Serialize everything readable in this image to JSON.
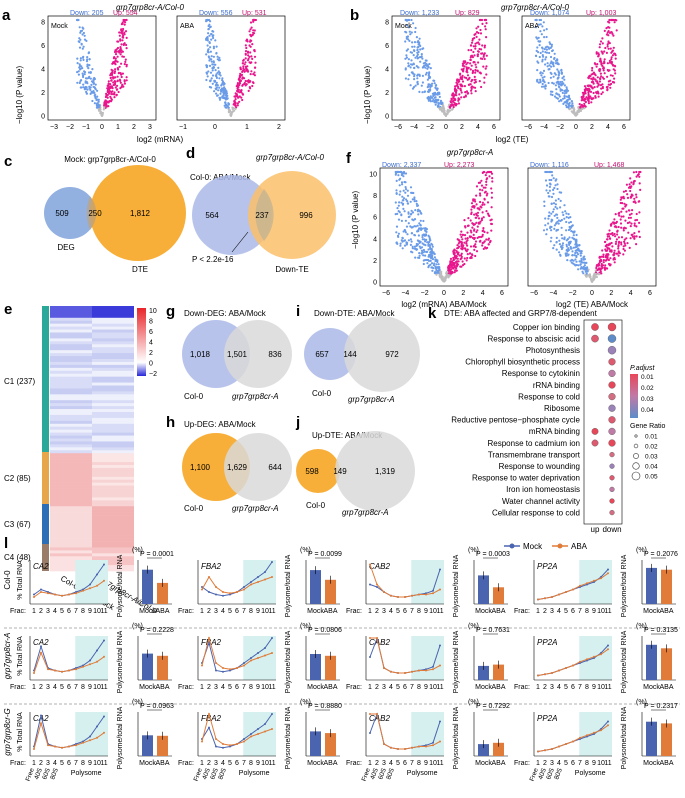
{
  "colors": {
    "down": "#6a9be8",
    "up": "#e8168c",
    "ns": "#bdbdbd",
    "blue": "#7fa3dc",
    "orange": "#f6a623",
    "gray": "#d4d4d4",
    "mock": "#4a64b0",
    "aba": "#e07b39",
    "poly": "#d5f0ef",
    "hm_hi": "#e8252a",
    "hm_lo": "#2626d8"
  },
  "labels": {
    "a": "a",
    "b": "b",
    "c": "c",
    "d": "d",
    "e": "e",
    "f": "f",
    "g": "g",
    "h": "h",
    "i": "i",
    "j": "j",
    "k": "k",
    "l": "l"
  },
  "panel_a": {
    "title": "grp7grp8cr-A/Col-0",
    "ylabel": "−log10 (P value)",
    "xlabel": "log2 (mRNA)",
    "mock": {
      "cond": "Mock",
      "down": "Down: 205",
      "up": "Up: 554"
    },
    "aba": {
      "cond": "ABA",
      "down": "Down: 556",
      "up": "Up: 531"
    },
    "yticks": [
      "0",
      "2",
      "4",
      "6",
      "8"
    ],
    "xticks": [
      "−3",
      "−2",
      "−1",
      "0",
      "1",
      "2",
      "3"
    ],
    "xticks2": [
      "−1",
      "0",
      "1",
      "2"
    ]
  },
  "panel_b": {
    "title": "grp7grp8cr-A/Col-0",
    "ylabel": "−log10 (P value)",
    "xlabel": "log2 (TE)",
    "mock": {
      "cond": "Mock",
      "down": "Down: 1,233",
      "up": "Up: 829"
    },
    "aba": {
      "cond": "ABA",
      "down": "Down: 1,074",
      "up": "Up: 1,003"
    },
    "yticks": [
      "0",
      "2",
      "4",
      "6",
      "8"
    ],
    "xticks": [
      "−6",
      "−4",
      "−2",
      "0",
      "2",
      "4",
      "6"
    ],
    "xticks2": [
      "−6",
      "−4",
      "−2",
      "0",
      "2",
      "4",
      "6"
    ]
  },
  "panel_c": {
    "title": "Mock: grp7grp8cr-A/Col-0",
    "left": "509",
    "mid": "250",
    "right": "1,812",
    "l1": "DEG",
    "l2": "DTE"
  },
  "panel_d": {
    "title": "grp7grp8cr-A/Col-0",
    "l1": "Col-0: ABA/Mock",
    "left": "564",
    "mid": "237",
    "right": "996",
    "l2": "Down-TE",
    "pval": "P < 2.2e-16"
  },
  "panel_e": {
    "clusters": [
      "C1 (237)",
      "C2 (85)",
      "C3 (67)",
      "C4 (48)"
    ],
    "xlabels": [
      "Col-0: ABA/Mock",
      "grp7grp8cr-A/Col-0"
    ],
    "scale": [
      "10",
      "8",
      "6",
      "4",
      "2",
      "0",
      "−2"
    ]
  },
  "panel_f": {
    "title": "grp7grp8cr-A",
    "ylabel": "−log10 (P value)",
    "left": {
      "down": "Down: 2,337",
      "up": "Up: 2,273",
      "xlabel": "log2 (mRNA) ABA/Mock"
    },
    "right": {
      "down": "Down: 1,116",
      "up": "Up: 1,468",
      "xlabel": "log2 (TE) ABA/Mock"
    },
    "yticks": [
      "0",
      "2",
      "4",
      "6",
      "8",
      "10"
    ],
    "xticks": [
      "−6",
      "−4",
      "−2",
      "0",
      "2",
      "4",
      "6"
    ]
  },
  "venns": {
    "g": {
      "title": "Down-DEG: ABA/Mock",
      "left": "1,018",
      "mid": "1,501",
      "right": "836",
      "l1": "Col-0",
      "l2": "grp7grp8cr-A"
    },
    "h": {
      "title": "Up-DEG: ABA/Mock",
      "left": "1,100",
      "mid": "1,629",
      "right": "644",
      "l1": "Col-0",
      "l2": "grp7grp8cr-A"
    },
    "i": {
      "title": "Down-DTE: ABA/Mock",
      "left": "657",
      "mid": "144",
      "right": "972",
      "l1": "Col-0",
      "l2": "grp7grp8cr-A"
    },
    "j": {
      "title": "Up-DTE: ABA/Mock",
      "left": "598",
      "mid": "149",
      "right": "1,319",
      "l1": "Col-0",
      "l2": "grp7grp8cr-A"
    }
  },
  "panel_k": {
    "title": "DTE: ABA affected and GRP7/8-dependent",
    "terms": [
      "Copper ion binding",
      "Response to abscisic acid",
      "Photosynthesis",
      "Chlorophyll biosynthetic process",
      "Response to cytokinin",
      "rRNA binding",
      "Response to cold",
      "Ribosome",
      "Reductive pentose−phosphate cycle",
      "mRNA binding",
      "Response to cadmium ion",
      "Transmembrane transport",
      "Response to wounding",
      "Response to water deprivation",
      "Iron ion homeostasis",
      "Water channel activity",
      "Cellular response to cold"
    ],
    "up": [
      1,
      1,
      0,
      0,
      0,
      0,
      0,
      0,
      0,
      1,
      1,
      0,
      0,
      0,
      0,
      0,
      0
    ],
    "down": [
      1,
      1,
      1,
      1,
      1,
      1,
      1,
      1,
      1,
      1,
      1,
      1,
      1,
      1,
      1,
      1,
      1
    ],
    "xlabels": [
      "up",
      "down"
    ],
    "padj_title": "P.adjust",
    "padj_ticks": [
      "0.01",
      "0.02",
      "0.03",
      "0.04"
    ],
    "gr_title": "Gene Ratio",
    "gr_ticks": [
      "0.01",
      "0.02",
      "0.03",
      "0.04",
      "0.05"
    ]
  },
  "panel_l": {
    "legend": {
      "mock": "Mock",
      "aba": "ABA"
    },
    "ylabel_line": "% Total RNA",
    "ylabel_bar": "Polysome/total RNA",
    "pct": "(%)",
    "frac": "Frac:",
    "frac_nums": [
      "1",
      "2",
      "3",
      "4",
      "5",
      "6",
      "7",
      "8",
      "9",
      "10",
      "11"
    ],
    "fraction_names": [
      "Free",
      "40S",
      "60S",
      "80S",
      "Polysome"
    ],
    "bar_x": [
      "Mock",
      "ABA"
    ],
    "genotypes": [
      "Col-0",
      "grp7grp8cr-A",
      "grp7grp8cr-G"
    ],
    "genes": [
      "CA2",
      "FBA2",
      "CAB2",
      "PP2A"
    ],
    "pvals": [
      [
        "P = 0.0001",
        "P = 0.0099",
        "P = 0.0003",
        "P = 0.2076"
      ],
      [
        "P = 0.2228",
        "P = 0.0806",
        "P = 0.7631",
        "P = 0.3135"
      ],
      [
        "P = 0.0963",
        "P = 0.8880",
        "P = 0.7292",
        "P = 0.2317"
      ]
    ],
    "bars": [
      [
        [
          78,
          48
        ],
        [
          77,
          55
        ],
        [
          65,
          38
        ],
        [
          82,
          78
        ]
      ],
      [
        [
          60,
          55
        ],
        [
          59,
          55
        ],
        [
          32,
          35
        ],
        [
          80,
          72
        ]
      ],
      [
        [
          47,
          46
        ],
        [
          56,
          52
        ],
        [
          27,
          30
        ],
        [
          78,
          74
        ]
      ]
    ]
  }
}
